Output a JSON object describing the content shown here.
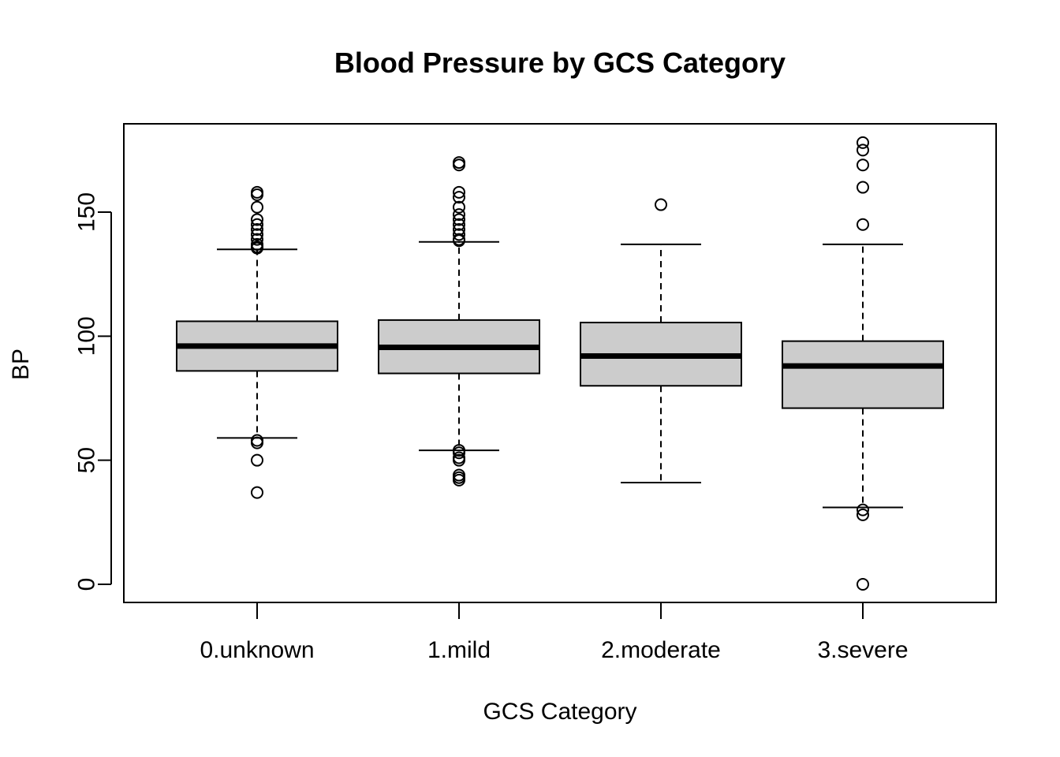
{
  "chart_data": {
    "type": "boxplot",
    "title": "Blood Pressure by GCS Category",
    "xlabel": "GCS Category",
    "ylabel": "BP",
    "ylim": [
      -7,
      186
    ],
    "yticks": [
      0,
      50,
      100,
      150
    ],
    "categories": [
      "0.unknown",
      "1.mild",
      "2.moderate",
      "3.severe"
    ],
    "boxes": [
      {
        "category": "0.unknown",
        "whisker_low": 59,
        "q1": 86,
        "median": 96,
        "q3": 106,
        "whisker_high": 135,
        "outliers": [
          158,
          157,
          152,
          147,
          145,
          143,
          141,
          139,
          137,
          136,
          135.5,
          58,
          57,
          50,
          37
        ]
      },
      {
        "category": "1.mild",
        "whisker_low": 54,
        "q1": 85,
        "median": 95.5,
        "q3": 106.5,
        "whisker_high": 138,
        "outliers": [
          170,
          169,
          158,
          156,
          152,
          149,
          147,
          145,
          143,
          141,
          139,
          138.5,
          54,
          53,
          51,
          50,
          44,
          43,
          42
        ]
      },
      {
        "category": "2.moderate",
        "whisker_low": 41,
        "q1": 80,
        "median": 92,
        "q3": 105.5,
        "whisker_high": 137,
        "outliers": [
          153
        ]
      },
      {
        "category": "3.severe",
        "whisker_low": 31,
        "q1": 71,
        "median": 88,
        "q3": 98,
        "whisker_high": 137,
        "outliers": [
          178,
          175,
          169,
          160,
          145,
          30,
          28,
          0
        ]
      }
    ],
    "box_fill": "#cccccc",
    "grid": false,
    "legend": "none"
  }
}
